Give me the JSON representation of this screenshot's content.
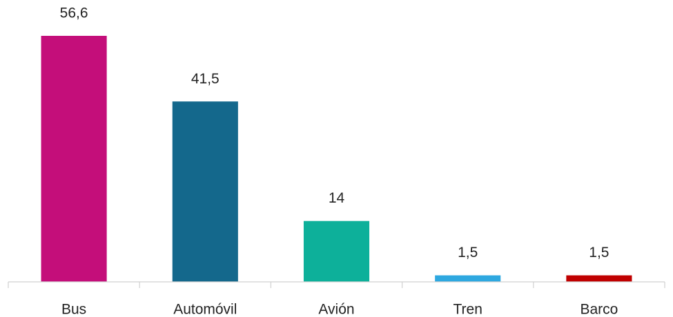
{
  "chart_data": {
    "type": "bar",
    "categories": [
      "Bus",
      "Automóvil",
      "Avión",
      "Tren",
      "Barco"
    ],
    "values": [
      56.6,
      41.5,
      14,
      1.5,
      1.5
    ],
    "value_labels": [
      "56,6",
      "41,5",
      "14",
      "1,5",
      "1,5"
    ],
    "colors": [
      "#c40e7a",
      "#14688c",
      "#0db09a",
      "#2ea8e0",
      "#c00000"
    ]
  }
}
